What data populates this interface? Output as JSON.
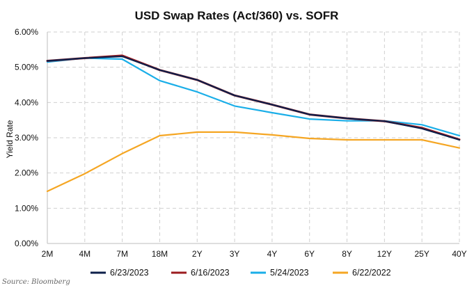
{
  "chart_data": {
    "type": "line",
    "title": "USD Swap Rates (Act/360) vs. SOFR",
    "ylabel": "Yield Rate",
    "xlabel": "",
    "categories": [
      "2M",
      "4M",
      "7M",
      "18M",
      "2Y",
      "3Y",
      "4Y",
      "6Y",
      "8Y",
      "12Y",
      "25Y",
      "40Y"
    ],
    "yticks": [
      "0.00%",
      "1.00%",
      "2.00%",
      "3.00%",
      "4.00%",
      "5.00%",
      "6.00%"
    ],
    "ylim": [
      0,
      6
    ],
    "grid": true,
    "legend_position": "bottom",
    "source": "Source: Bloomberg",
    "series": [
      {
        "name": "6/23/2023",
        "color": "#0d1f4a",
        "values": [
          5.18,
          5.26,
          5.31,
          4.92,
          4.64,
          4.2,
          3.94,
          3.66,
          3.55,
          3.47,
          3.26,
          2.94
        ]
      },
      {
        "name": "6/16/2023",
        "color": "#9b1b1f",
        "values": [
          5.18,
          5.26,
          5.33,
          4.92,
          4.64,
          4.2,
          3.94,
          3.66,
          3.55,
          3.47,
          3.28,
          2.95
        ]
      },
      {
        "name": "5/24/2023",
        "color": "#1aaee8",
        "values": [
          5.15,
          5.26,
          5.23,
          4.62,
          4.3,
          3.9,
          3.71,
          3.53,
          3.48,
          3.48,
          3.37,
          3.06
        ]
      },
      {
        "name": "6/22/2022",
        "color": "#f5a623",
        "values": [
          1.48,
          1.98,
          2.55,
          3.06,
          3.16,
          3.16,
          3.08,
          2.98,
          2.94,
          2.94,
          2.94,
          2.71
        ]
      }
    ]
  }
}
